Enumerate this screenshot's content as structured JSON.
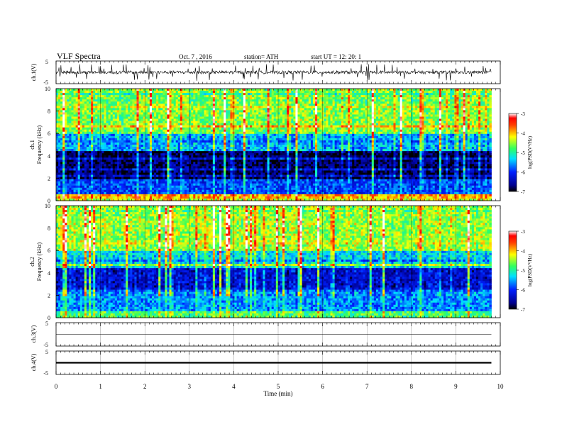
{
  "header": {
    "title": "VLF  Spectra",
    "date": "Oct. 7  , 2016",
    "station": "station= ATH",
    "start": "start  UT  =    12: 20: 1"
  },
  "xaxis": {
    "label": "Time  (min)",
    "ticks": [
      "0",
      "1",
      "2",
      "3",
      "4",
      "5",
      "6",
      "7",
      "8",
      "9",
      "10"
    ]
  },
  "panels": {
    "ch1_wave": {
      "ylabel": "ch.1(V)",
      "ticks": [
        "5",
        "-5"
      ]
    },
    "ch1_spec": {
      "ylabel_a": "ch.1",
      "ylabel_b": "Frequency  (kHz)",
      "ticks": [
        "10",
        "8",
        "6",
        "4",
        "2",
        "0"
      ]
    },
    "ch2_spec": {
      "ylabel_a": "ch.2",
      "ylabel_b": "Frequency  (kHz)",
      "ticks": [
        "10",
        "8",
        "6",
        "4",
        "2",
        "0"
      ]
    },
    "ch3_wave": {
      "ylabel": "ch.3(V)",
      "ticks": [
        "5",
        "-5"
      ]
    },
    "ch4_wave": {
      "ylabel": "ch.4(V)",
      "ticks": [
        "5",
        "-5"
      ]
    }
  },
  "colorbar": {
    "label": "log(PSD(V²/Hz)",
    "ticks": [
      "-3",
      "-4",
      "-5",
      "-6",
      "-7"
    ]
  },
  "chart_data": [
    {
      "type": "line",
      "title": "ch.1(V)",
      "xlabel": "Time (min)",
      "ylabel": "ch.1(V)",
      "xlim": [
        0,
        10
      ],
      "ylim": [
        -5,
        5
      ],
      "description_level": "noisy waveform around 0 V with spikes near +/-2 V, data ends at ~9.8 min"
    },
    {
      "type": "heatmap",
      "title": "ch.1 Frequency (kHz)",
      "xlim": [
        0,
        10
      ],
      "ylim": [
        0,
        10
      ],
      "zlim": [
        -7,
        -3
      ],
      "zlabel": "log(PSD(V²/Hz)",
      "bands": [
        {
          "f_low": 6.0,
          "f_high": 10.0,
          "level": -4.6
        },
        {
          "f_low": 4.5,
          "f_high": 6.0,
          "level": -5.5
        },
        {
          "f_low": 2.0,
          "f_high": 4.5,
          "level": -6.8
        },
        {
          "f_low": 0.5,
          "f_high": 2.0,
          "level": -5.9
        },
        {
          "f_low": 0.0,
          "f_high": 0.5,
          "level": -4.0
        }
      ]
    },
    {
      "type": "heatmap",
      "title": "ch.2 Frequency (kHz)",
      "xlim": [
        0,
        10
      ],
      "ylim": [
        0,
        10
      ],
      "zlim": [
        -7,
        -3
      ],
      "zlabel": "log(PSD(V²/Hz)",
      "bands": [
        {
          "f_low": 6.0,
          "f_high": 10.0,
          "level": -4.5
        },
        {
          "f_low": 4.5,
          "f_high": 6.0,
          "level": -5.3
        },
        {
          "f_low": 2.5,
          "f_high": 4.5,
          "level": -6.3
        },
        {
          "f_low": 0.5,
          "f_high": 2.5,
          "level": -5.6
        },
        {
          "f_low": 0.0,
          "f_high": 0.5,
          "level": -4.8
        }
      ]
    },
    {
      "type": "line",
      "title": "ch.3(V)",
      "xlim": [
        0,
        10
      ],
      "ylim": [
        -5,
        5
      ],
      "values_constant": 0
    },
    {
      "type": "line",
      "title": "ch.4(V)",
      "xlim": [
        0,
        10
      ],
      "ylim": [
        -5,
        5
      ],
      "values_constant": 0
    }
  ]
}
